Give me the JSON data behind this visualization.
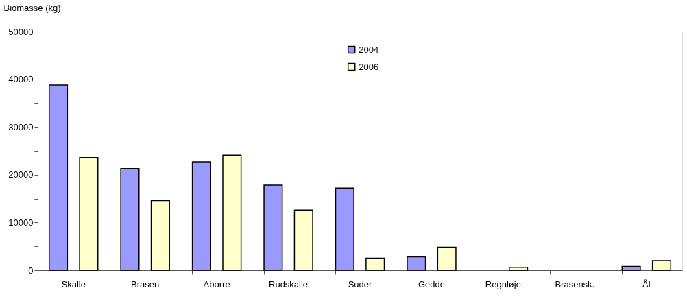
{
  "chart_data": {
    "type": "bar",
    "ylabel": "Biomasse (kg)",
    "categories": [
      "Skalle",
      "Brasen",
      "Aborre",
      "Rudskalle",
      "Suder",
      "Gedde",
      "Regnløje",
      "Brasensk.",
      "Ål"
    ],
    "series": [
      {
        "name": "2004",
        "color": "#9999ff",
        "values": [
          38800,
          21300,
          22700,
          17800,
          17200,
          2800,
          0,
          0,
          800
        ]
      },
      {
        "name": "2006",
        "color": "#ffffcc",
        "values": [
          23600,
          14600,
          24100,
          12600,
          2500,
          4800,
          600,
          0,
          2000
        ]
      }
    ],
    "ylim": [
      0,
      50000
    ],
    "yticks": [
      0,
      {
        "value": 5000,
        "label": null
      },
      10000,
      {
        "value": 15000,
        "label": null
      },
      20000,
      {
        "value": 25000,
        "label": null
      },
      30000,
      {
        "value": 35000,
        "label": null
      },
      40000,
      {
        "value": 45000,
        "label": null
      },
      50000
    ],
    "grid": false,
    "legend": "top"
  }
}
